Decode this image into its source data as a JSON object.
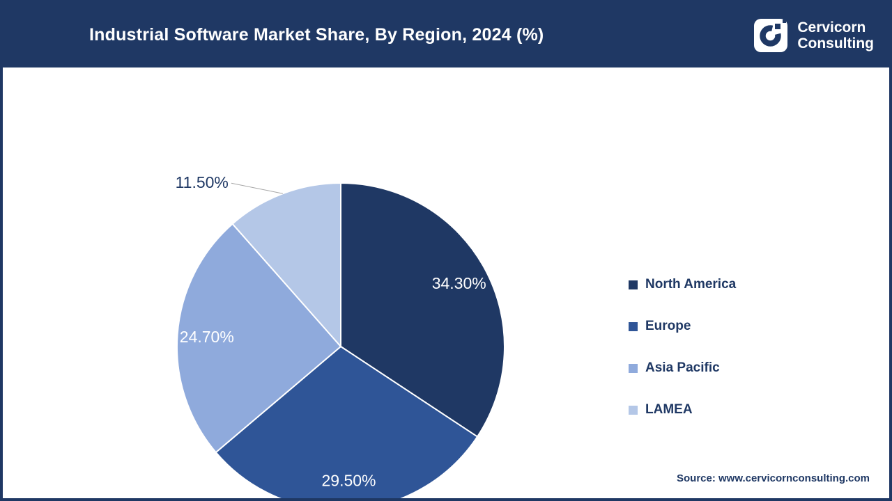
{
  "header": {
    "title": "Industrial Software Market Share, By Region, 2024 (%)",
    "background": "#1F3864",
    "brand": {
      "name_line1": "Cervicorn",
      "name_line2": "Consulting",
      "logo_color": "#1F3864"
    }
  },
  "chart_data": {
    "type": "pie",
    "title": "Industrial Software Market Share, By Region, 2024 (%)",
    "unit": "%",
    "start_angle_deg": 0,
    "direction": "clockwise",
    "legend_position": "right",
    "slice_border_color": "#FFFFFF",
    "leader_line_color": "#A6A6A6",
    "slices": [
      {
        "name": "North America",
        "value": 34.3,
        "display": "34.30%",
        "color": "#1F3864",
        "label_placement": "inside",
        "label_color": "#FFFFFF"
      },
      {
        "name": "Europe",
        "value": 29.5,
        "display": "29.50%",
        "color": "#2F5597",
        "label_placement": "inside",
        "label_color": "#FFFFFF"
      },
      {
        "name": "Asia Pacific",
        "value": 24.7,
        "display": "24.70%",
        "color": "#8FAADC",
        "label_placement": "inside",
        "label_color": "#FFFFFF"
      },
      {
        "name": "LAMEA",
        "value": 11.5,
        "display": "11.50%",
        "color": "#B4C7E7",
        "label_placement": "outside",
        "label_color": "#1F3864"
      }
    ]
  },
  "footer": {
    "source": "Source: www.cervicornconsulting.com"
  }
}
